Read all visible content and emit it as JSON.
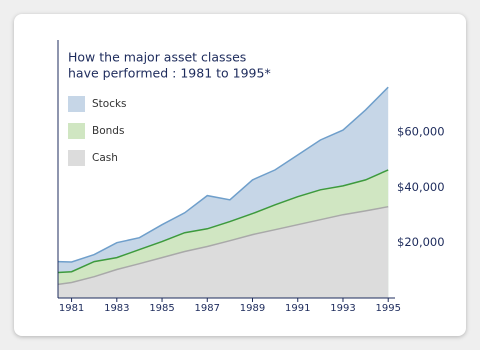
{
  "chart_data": {
    "type": "area",
    "title": [
      "How the major asset classes",
      "have performed : 1981 to 1995*"
    ],
    "x": [
      1980.4,
      1981,
      1982,
      1983,
      1984,
      1985,
      1986,
      1987,
      1988,
      1989,
      1990,
      1991,
      1992,
      1993,
      1994,
      1995
    ],
    "series": [
      {
        "name": "Stocks",
        "color": "#c6d6e7",
        "line_color": "#6f9fcb",
        "values": [
          13150,
          13000,
          15700,
          20000,
          21800,
          26500,
          30800,
          37000,
          35500,
          42700,
          46300,
          51700,
          57100,
          60700,
          68000,
          76200
        ]
      },
      {
        "name": "Bonds",
        "color": "#d0e6c2",
        "line_color": "#3d9a3d",
        "values": [
          9200,
          9500,
          13150,
          14600,
          17500,
          20400,
          23600,
          25000,
          27600,
          30500,
          33700,
          36600,
          39100,
          40500,
          42700,
          46300
        ]
      },
      {
        "name": "Cash",
        "color": "#dcdcdc",
        "line_color": "#a9a9a9",
        "values": [
          4900,
          5600,
          7700,
          10300,
          12400,
          14600,
          16800,
          18600,
          20700,
          22900,
          24700,
          26500,
          28300,
          30100,
          31500,
          33000
        ]
      }
    ],
    "xlim": [
      1980.4,
      1995.3
    ],
    "xticks": [
      1981,
      1983,
      1985,
      1987,
      1989,
      1991,
      1993,
      1995
    ],
    "ylim": [
      0,
      90000
    ],
    "yticks": [
      {
        "value": 20000,
        "label": "$20,000"
      },
      {
        "value": 40000,
        "label": "$40,000"
      },
      {
        "value": 60000,
        "label": "$60,000"
      }
    ],
    "legend": "top-left"
  }
}
